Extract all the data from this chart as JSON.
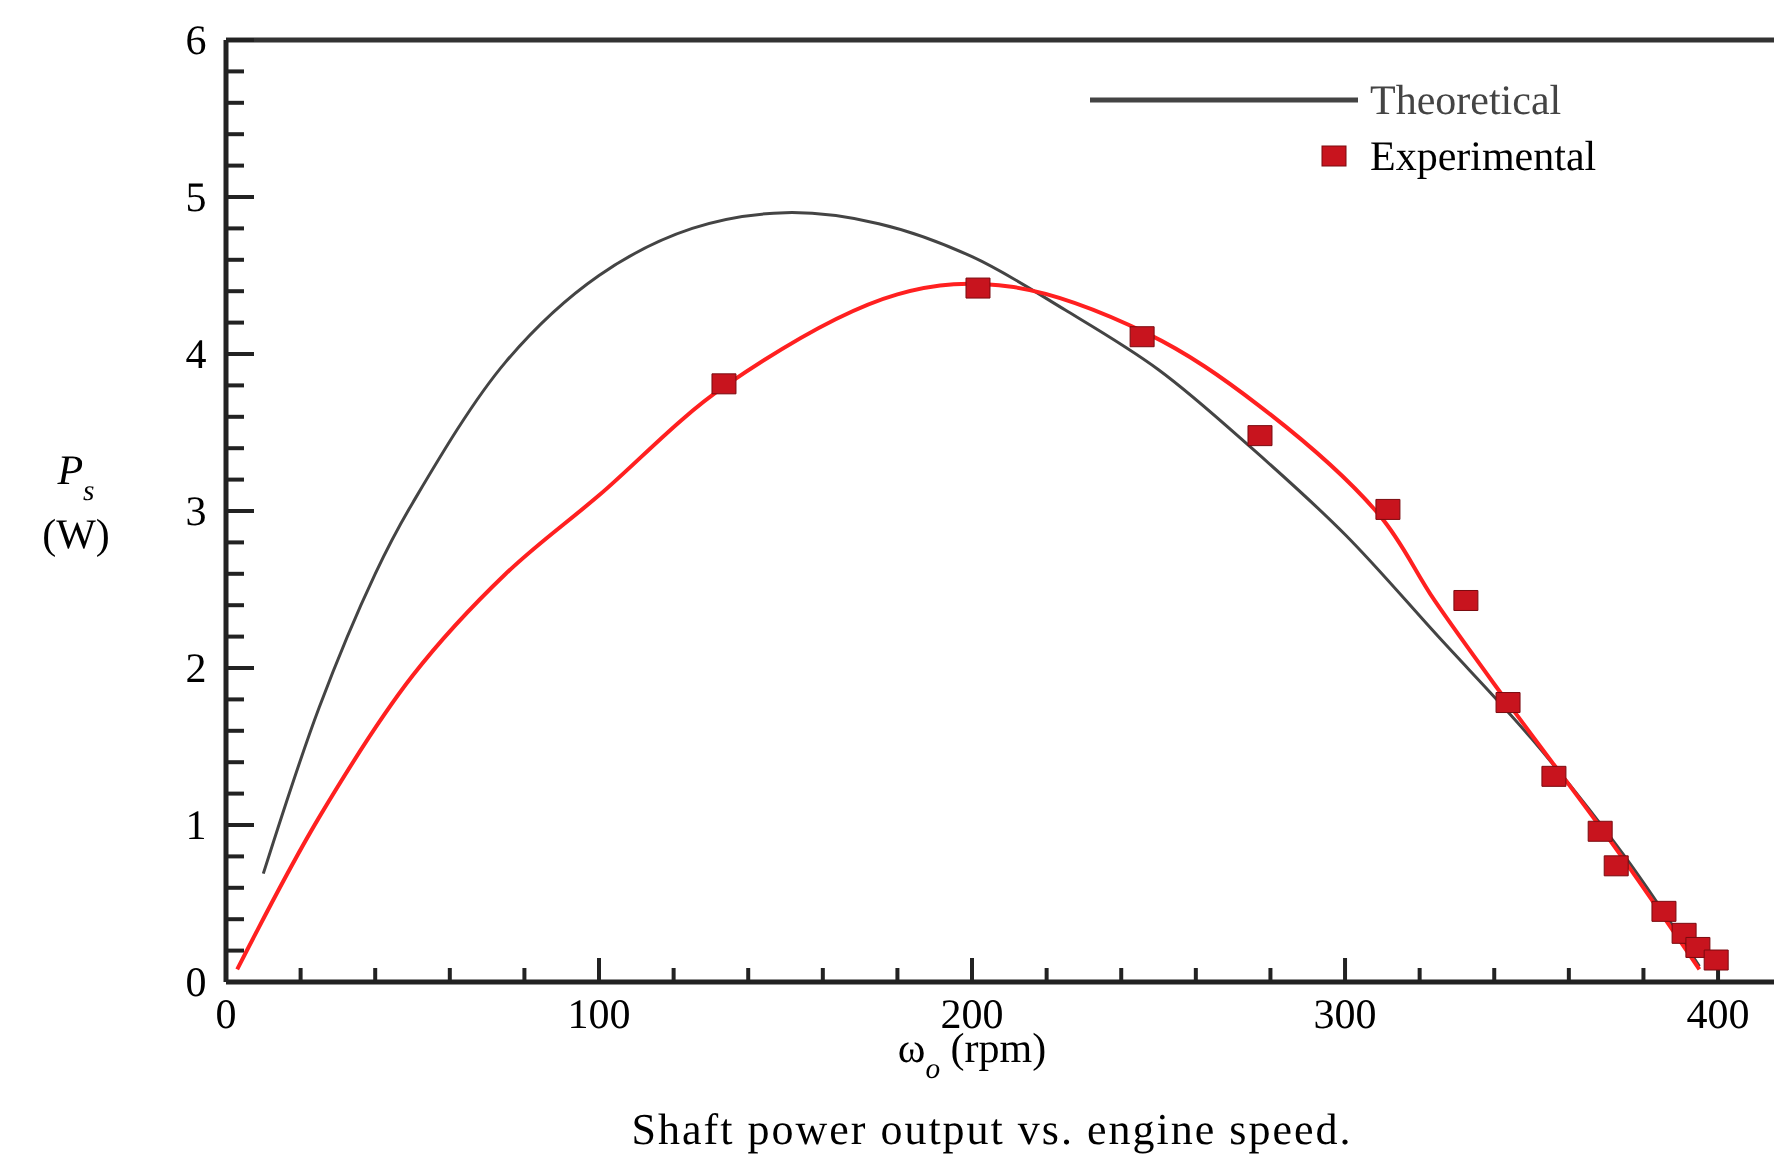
{
  "chart_data": {
    "type": "line",
    "title": "Shaft power output vs. engine speed.",
    "xlabel": "ω$_{o}$ (rpm)",
    "ylabel": "P$_{s}$ (W)",
    "xlim": [
      0,
      415
    ],
    "ylim": [
      0,
      6
    ],
    "xticks": [
      0,
      {
        "value": 20,
        "label": null
      },
      {
        "value": 40,
        "label": null
      },
      {
        "value": 60,
        "label": null
      },
      {
        "value": 80,
        "label": null
      },
      100,
      {
        "value": 120,
        "label": null
      },
      {
        "value": 140,
        "label": null
      },
      {
        "value": 160,
        "label": null
      },
      {
        "value": 180,
        "label": null
      },
      200,
      {
        "value": 220,
        "label": null
      },
      {
        "value": 240,
        "label": null
      },
      {
        "value": 260,
        "label": null
      },
      {
        "value": 280,
        "label": null
      },
      300,
      {
        "value": 320,
        "label": null
      },
      {
        "value": 340,
        "label": null
      },
      {
        "value": 360,
        "label": null
      },
      {
        "value": 380,
        "label": null
      },
      400
    ],
    "yticks": [
      0,
      {
        "value": 0.2,
        "label": null
      },
      {
        "value": 0.4,
        "label": null
      },
      {
        "value": 0.6,
        "label": null
      },
      {
        "value": 0.8,
        "label": null
      },
      1,
      {
        "value": 1.2,
        "label": null
      },
      {
        "value": 1.4,
        "label": null
      },
      {
        "value": 1.6,
        "label": null
      },
      {
        "value": 1.8,
        "label": null
      },
      2,
      {
        "value": 2.2,
        "label": null
      },
      {
        "value": 2.4,
        "label": null
      },
      {
        "value": 2.6,
        "label": null
      },
      {
        "value": 2.8,
        "label": null
      },
      3,
      {
        "value": 3.2,
        "label": null
      },
      {
        "value": 3.4,
        "label": null
      },
      {
        "value": 3.6,
        "label": null
      },
      {
        "value": 3.8,
        "label": null
      },
      4,
      {
        "value": 4.2,
        "label": null
      },
      {
        "value": 4.4,
        "label": null
      },
      {
        "value": 4.6,
        "label": null
      },
      {
        "value": 4.8,
        "label": null
      },
      5,
      {
        "value": 5.2,
        "label": null
      },
      {
        "value": 5.4,
        "label": null
      },
      {
        "value": 5.6,
        "label": null
      },
      {
        "value": 5.8,
        "label": null
      },
      6
    ],
    "grid": false,
    "legend": "top right",
    "series": [
      {
        "name": "Theoretical",
        "type": "line",
        "color": "#444444",
        "x": [
          10,
          25,
          40,
          50,
          75,
          100,
          125,
          150,
          175,
          200,
          225,
          250,
          275,
          300,
          325,
          350,
          375,
          395
        ],
        "values": [
          0.69,
          1.75,
          2.6,
          3.05,
          3.95,
          4.5,
          4.8,
          4.9,
          4.83,
          4.62,
          4.28,
          3.9,
          3.4,
          2.85,
          2.2,
          1.55,
          0.8,
          0.1
        ]
      },
      {
        "name": "Experimental",
        "type": "scatter",
        "marker": "square",
        "color": "#c8141e",
        "x": [
          133.5,
          201.6,
          245.6,
          277.2,
          311.5,
          332.4,
          343.7,
          356,
          368.4,
          372.7,
          385.5,
          390.9,
          394.6,
          399.5
        ],
        "values": [
          3.81,
          4.42,
          4.11,
          3.48,
          3.01,
          2.43,
          1.78,
          1.31,
          0.96,
          0.74,
          0.45,
          0.31,
          0.22,
          0.14
        ]
      },
      {
        "color": "#ff2020",
        "x": [
          3,
          25,
          50,
          75,
          100,
          134,
          180,
          210,
          247,
          277,
          309,
          324,
          343,
          372,
          395
        ],
        "values": [
          0.08,
          1.05,
          1.95,
          2.6,
          3.1,
          3.8,
          4.38,
          4.43,
          4.13,
          3.67,
          2.98,
          2.43,
          1.8,
          0.87,
          0.08
        ]
      }
    ]
  }
}
